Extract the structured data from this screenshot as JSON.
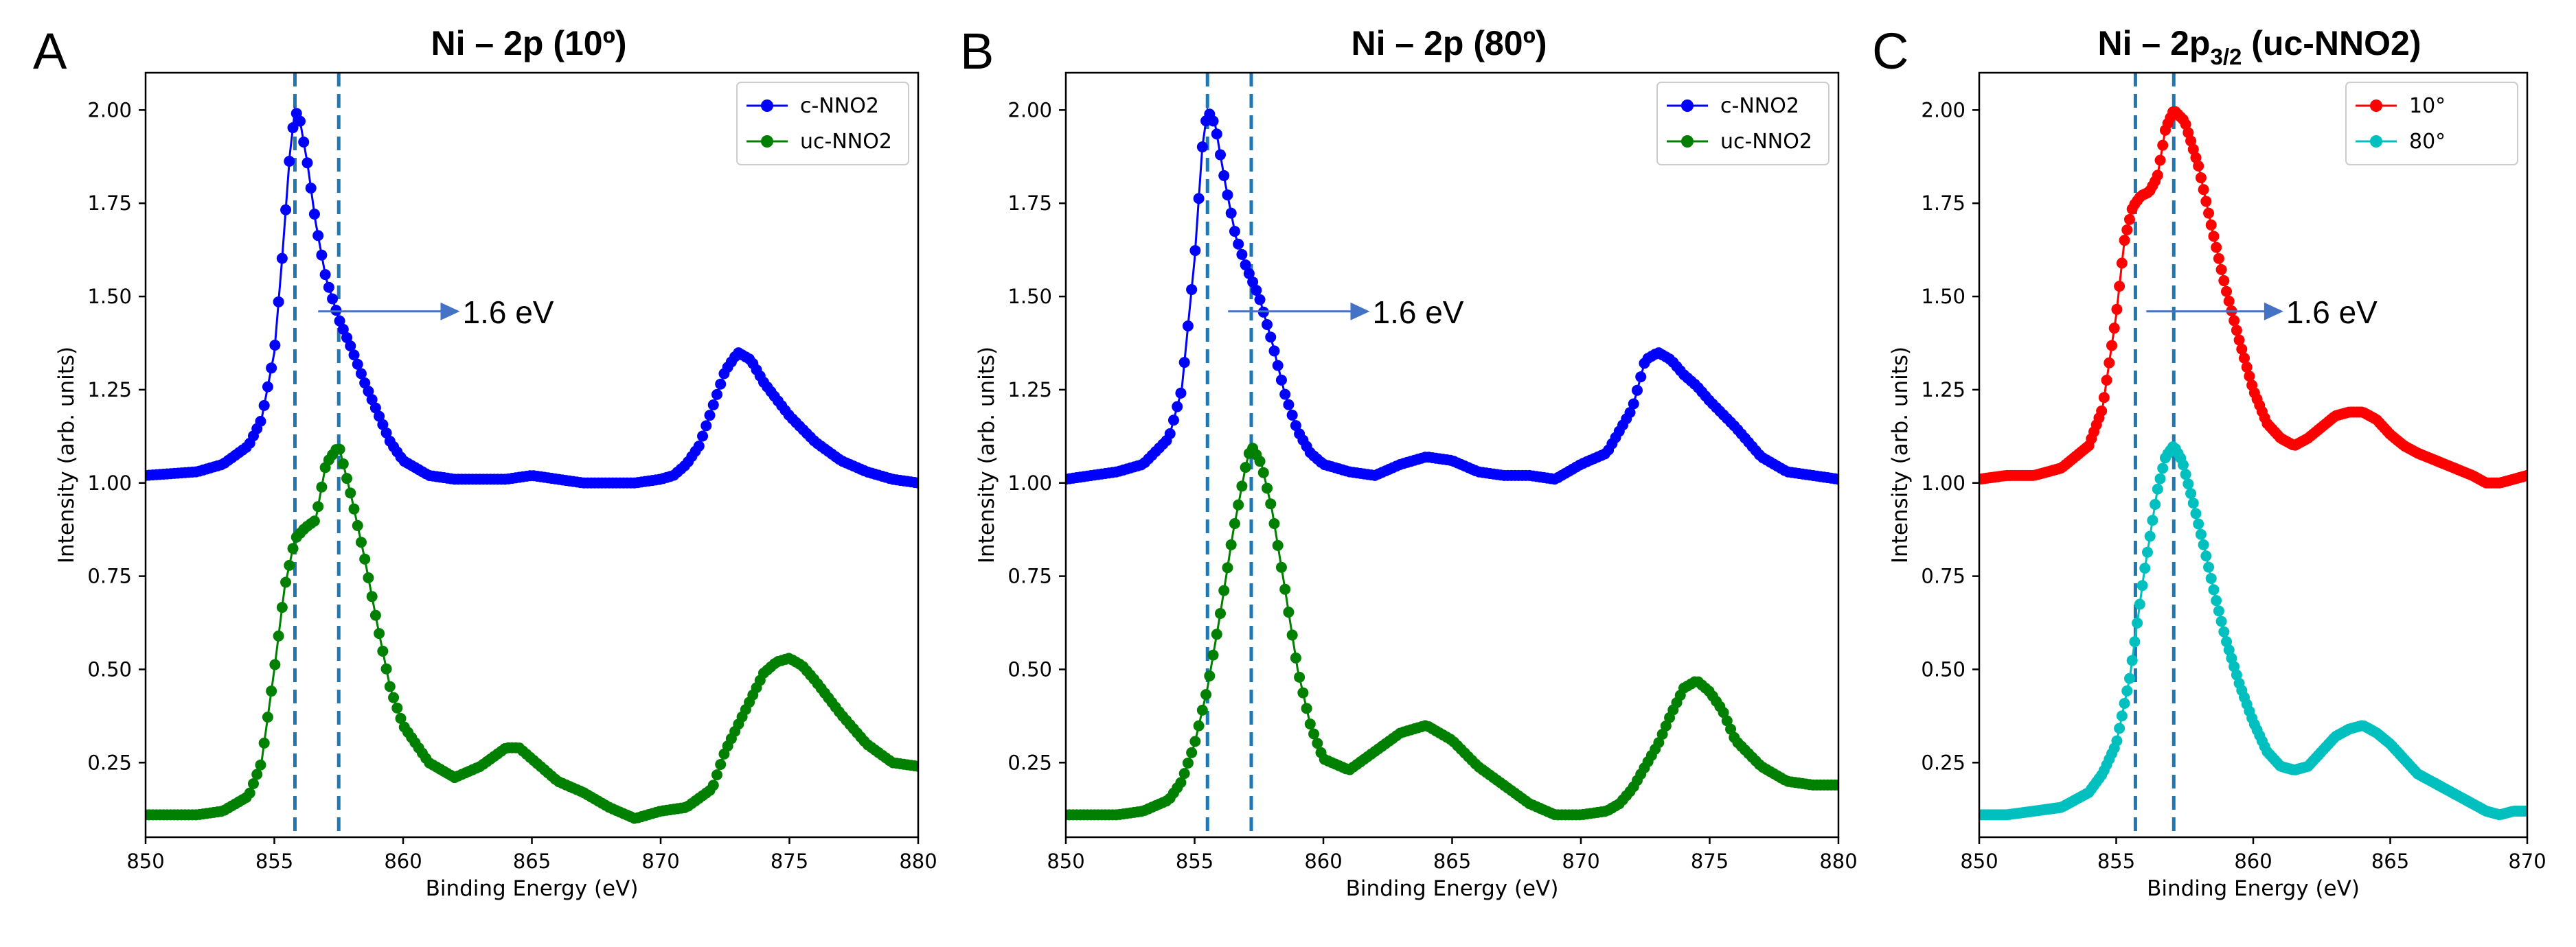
{
  "chart_data": [
    {
      "type": "line",
      "panel_letter": "A",
      "title": "Ni – 2p (10º)",
      "xlabel": "Binding Energy (eV)",
      "ylabel": "Intensity (arb. units)",
      "xlim": [
        850,
        880
      ],
      "ylim": [
        0.05,
        2.1
      ],
      "xticks": [
        850,
        855,
        860,
        865,
        870,
        875,
        880
      ],
      "yticks": [
        0.25,
        0.5,
        0.75,
        1.0,
        1.25,
        1.5,
        1.75,
        2.0
      ],
      "ytick_labels": [
        "0.25",
        "0.50",
        "0.75",
        "1.00",
        "1.25",
        "1.50",
        "1.75",
        "2.00"
      ],
      "vlines": [
        855.8,
        857.5
      ],
      "annotation": {
        "text": "1.6 eV",
        "arrow_from": [
          856.7,
          1.46
        ],
        "arrow_to": [
          862.2,
          1.46
        ]
      },
      "legend_position": "top-right",
      "series": [
        {
          "name": "c-NNO2",
          "color": "#0000ff",
          "x": [
            850,
            852,
            853,
            854,
            854.5,
            855,
            855.3,
            855.6,
            855.8,
            856,
            856.3,
            856.6,
            857,
            857.5,
            858,
            858.5,
            859,
            859.5,
            860,
            861,
            862,
            863,
            864,
            865,
            866,
            867,
            868,
            869,
            870,
            870.5,
            871,
            871.5,
            872,
            872.5,
            873,
            873.5,
            874,
            875,
            876,
            877,
            878,
            879,
            880
          ],
          "y": [
            1.02,
            1.03,
            1.05,
            1.1,
            1.17,
            1.35,
            1.6,
            1.88,
            2.0,
            1.97,
            1.85,
            1.7,
            1.55,
            1.44,
            1.36,
            1.27,
            1.19,
            1.11,
            1.06,
            1.02,
            1.01,
            1.01,
            1.01,
            1.02,
            1.01,
            1.0,
            1.0,
            1.0,
            1.01,
            1.02,
            1.05,
            1.1,
            1.2,
            1.3,
            1.35,
            1.33,
            1.27,
            1.18,
            1.11,
            1.06,
            1.03,
            1.01,
            1.0
          ]
        },
        {
          "name": "uc-NNO2",
          "color": "#008000",
          "x": [
            850,
            852,
            853,
            854,
            854.5,
            855,
            855.4,
            855.8,
            856.2,
            856.6,
            857,
            857.5,
            858,
            858.5,
            859,
            859.5,
            860,
            861,
            862,
            863,
            864,
            864.5,
            865,
            866,
            867,
            868,
            869,
            870,
            871,
            872,
            872.5,
            873,
            873.5,
            874,
            874.5,
            875,
            875.5,
            876,
            877,
            878,
            879,
            880
          ],
          "y": [
            0.11,
            0.11,
            0.12,
            0.16,
            0.25,
            0.5,
            0.72,
            0.85,
            0.88,
            0.9,
            1.05,
            1.1,
            0.96,
            0.8,
            0.62,
            0.45,
            0.35,
            0.25,
            0.21,
            0.24,
            0.29,
            0.29,
            0.26,
            0.2,
            0.17,
            0.13,
            0.1,
            0.12,
            0.13,
            0.18,
            0.28,
            0.35,
            0.42,
            0.49,
            0.52,
            0.53,
            0.51,
            0.47,
            0.38,
            0.3,
            0.25,
            0.24
          ]
        }
      ]
    },
    {
      "type": "line",
      "panel_letter": "B",
      "title": "Ni – 2p (80º)",
      "xlabel": "Binding Energy (eV)",
      "ylabel": "Intensity (arb. units)",
      "xlim": [
        850,
        880
      ],
      "ylim": [
        0.05,
        2.1
      ],
      "xticks": [
        850,
        855,
        860,
        865,
        870,
        875,
        880
      ],
      "yticks": [
        0.25,
        0.5,
        0.75,
        1.0,
        1.25,
        1.5,
        1.75,
        2.0
      ],
      "ytick_labels": [
        "0.25",
        "0.50",
        "0.75",
        "1.00",
        "1.25",
        "1.50",
        "1.75",
        "2.00"
      ],
      "vlines": [
        855.5,
        857.2
      ],
      "annotation": {
        "text": "1.6 eV",
        "arrow_from": [
          856.3,
          1.46
        ],
        "arrow_to": [
          861.8,
          1.46
        ]
      },
      "legend_position": "top-right",
      "series": [
        {
          "name": "c-NNO2",
          "color": "#0000ff",
          "x": [
            850,
            852,
            853,
            854,
            854.5,
            855,
            855.3,
            855.5,
            855.8,
            856.2,
            856.6,
            857,
            857.5,
            858,
            858.5,
            859,
            859.5,
            860,
            861,
            862,
            863,
            864,
            865,
            866,
            867,
            868,
            869,
            870,
            871,
            872,
            872.5,
            873,
            873.5,
            874,
            874.5,
            875,
            876,
            877,
            878,
            879,
            880
          ],
          "y": [
            1.01,
            1.03,
            1.05,
            1.12,
            1.25,
            1.6,
            1.9,
            2.0,
            1.96,
            1.8,
            1.66,
            1.58,
            1.5,
            1.38,
            1.24,
            1.14,
            1.08,
            1.05,
            1.03,
            1.02,
            1.05,
            1.07,
            1.06,
            1.03,
            1.02,
            1.02,
            1.01,
            1.05,
            1.08,
            1.2,
            1.33,
            1.35,
            1.33,
            1.29,
            1.26,
            1.22,
            1.15,
            1.07,
            1.03,
            1.02,
            1.01
          ]
        },
        {
          "name": "uc-NNO2",
          "color": "#008000",
          "x": [
            850,
            852,
            853,
            854,
            854.5,
            855,
            855.5,
            856,
            856.5,
            857,
            857.2,
            857.6,
            858,
            858.5,
            859,
            859.5,
            860,
            861,
            862,
            863,
            864,
            865,
            866,
            867,
            868,
            869,
            870,
            871,
            871.5,
            872,
            873,
            873.5,
            874,
            874.5,
            875,
            875.5,
            876,
            877,
            878,
            879,
            880
          ],
          "y": [
            0.11,
            0.11,
            0.12,
            0.15,
            0.2,
            0.3,
            0.45,
            0.65,
            0.87,
            1.05,
            1.1,
            1.05,
            0.93,
            0.72,
            0.5,
            0.35,
            0.26,
            0.23,
            0.28,
            0.33,
            0.35,
            0.31,
            0.24,
            0.19,
            0.14,
            0.11,
            0.11,
            0.12,
            0.14,
            0.18,
            0.3,
            0.38,
            0.45,
            0.47,
            0.44,
            0.39,
            0.31,
            0.24,
            0.2,
            0.19,
            0.19
          ]
        }
      ]
    },
    {
      "type": "line",
      "panel_letter": "C",
      "title_main": "Ni – 2p",
      "title_sub": "3/2",
      "title_tail": " (uc-NNO2)",
      "xlabel": "Binding Energy (eV)",
      "ylabel": "Intensity (arb. units)",
      "xlim": [
        850,
        870
      ],
      "ylim": [
        0.05,
        2.1
      ],
      "xticks": [
        850,
        855,
        860,
        865,
        870
      ],
      "yticks": [
        0.25,
        0.5,
        0.75,
        1.0,
        1.25,
        1.5,
        1.75,
        2.0
      ],
      "ytick_labels": [
        "0.25",
        "0.50",
        "0.75",
        "1.00",
        "1.25",
        "1.50",
        "1.75",
        "2.00"
      ],
      "vlines": [
        855.7,
        857.1
      ],
      "annotation": {
        "text": "1.6 eV",
        "arrow_from": [
          856.1,
          1.46
        ],
        "arrow_to": [
          861.1,
          1.46
        ]
      },
      "legend_position": "top-right",
      "series": [
        {
          "name": "10°",
          "color": "#ff0000",
          "x": [
            850,
            851,
            852,
            853,
            854,
            854.5,
            855,
            855.3,
            855.6,
            855.9,
            856.2,
            856.5,
            856.8,
            857.1,
            857.5,
            858,
            858.5,
            859,
            859.5,
            860,
            860.5,
            861,
            861.5,
            862,
            862.5,
            863,
            863.5,
            864,
            864.5,
            865,
            865.5,
            866,
            867,
            868,
            868.5,
            869,
            869.5,
            870
          ],
          "y": [
            1.01,
            1.02,
            1.02,
            1.04,
            1.1,
            1.2,
            1.45,
            1.65,
            1.74,
            1.77,
            1.78,
            1.82,
            1.95,
            2.0,
            1.97,
            1.85,
            1.68,
            1.52,
            1.38,
            1.25,
            1.16,
            1.12,
            1.1,
            1.12,
            1.15,
            1.18,
            1.19,
            1.19,
            1.17,
            1.13,
            1.1,
            1.08,
            1.05,
            1.02,
            1.0,
            1.0,
            1.01,
            1.02
          ]
        },
        {
          "name": "80°",
          "color": "#00bfbf",
          "x": [
            850,
            851,
            852,
            853,
            854,
            854.5,
            855,
            855.5,
            856,
            856.5,
            856.8,
            857.1,
            857.4,
            857.8,
            858.2,
            858.6,
            859,
            859.5,
            860,
            860.5,
            861,
            861.5,
            862,
            862.5,
            863,
            863.5,
            864,
            864.5,
            865,
            865.5,
            866,
            867,
            868,
            868.5,
            869,
            869.5,
            870
          ],
          "y": [
            0.11,
            0.11,
            0.12,
            0.13,
            0.17,
            0.22,
            0.3,
            0.48,
            0.75,
            0.98,
            1.07,
            1.1,
            1.06,
            0.95,
            0.83,
            0.7,
            0.58,
            0.46,
            0.36,
            0.28,
            0.24,
            0.23,
            0.24,
            0.28,
            0.32,
            0.34,
            0.35,
            0.33,
            0.3,
            0.26,
            0.22,
            0.18,
            0.14,
            0.12,
            0.11,
            0.12,
            0.12
          ]
        }
      ]
    }
  ]
}
